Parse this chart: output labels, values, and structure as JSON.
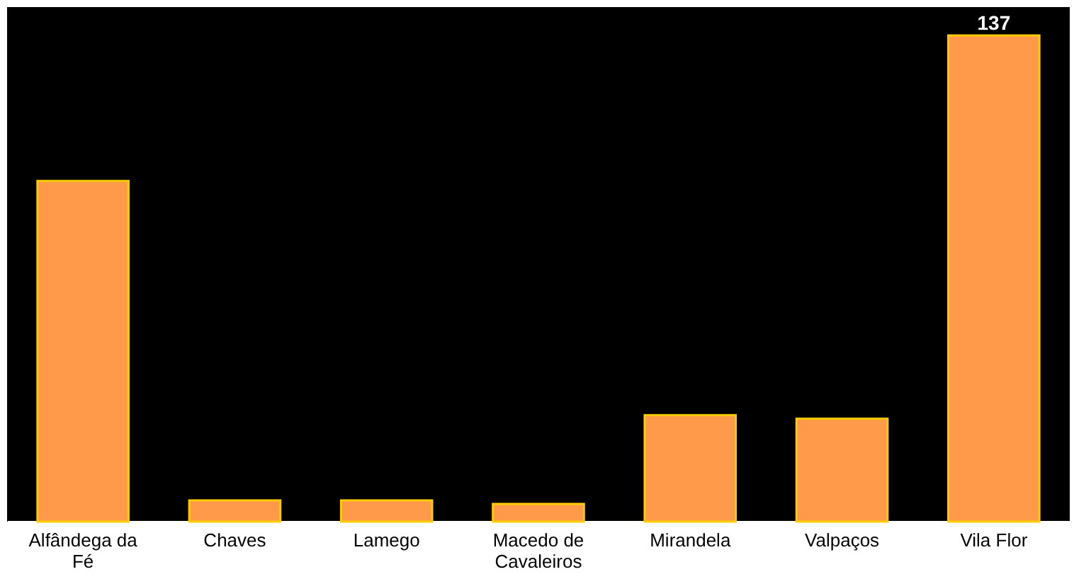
{
  "chart_data": {
    "type": "bar",
    "tick_labels": "x",
    "categories": [
      "Alfândega da Fé",
      "Chaves",
      "Lamego",
      "Macedo de Cavaleiros",
      "Mirandela",
      "Valpaços",
      "Vila Flor"
    ],
    "values": [
      96,
      6,
      6,
      5,
      30,
      29,
      137
    ],
    "value_labels": [
      null,
      null,
      null,
      null,
      null,
      null,
      "137"
    ],
    "ylim": [
      0,
      145
    ],
    "color": "#ff9a4a",
    "grid": false
  }
}
